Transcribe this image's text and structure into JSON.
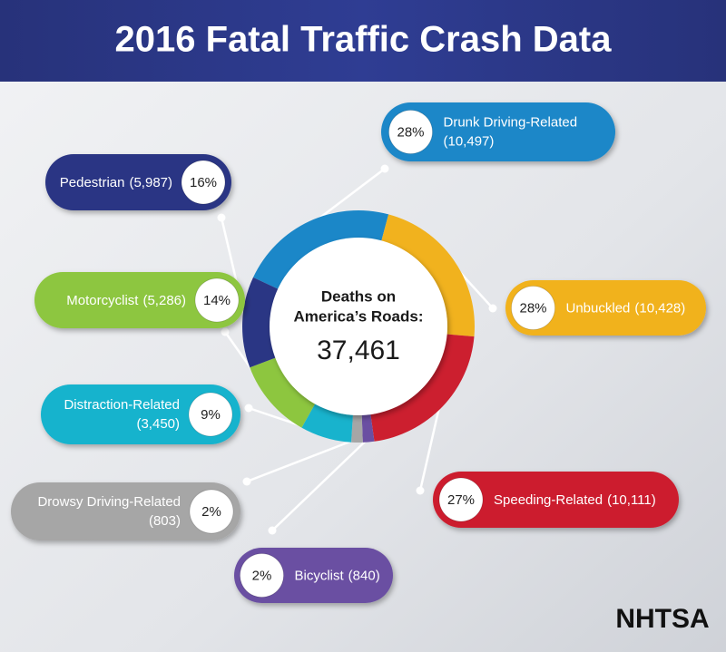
{
  "chart_data": {
    "type": "donut",
    "title": "2016 Fatal Traffic Crash Data",
    "center_label": [
      "Deaths on",
      "America’s Roads:"
    ],
    "total": {
      "value": 37461,
      "label": "37,461"
    },
    "categories": [
      "Drunk Driving-Related",
      "Unbuckled",
      "Speeding-Related",
      "Bicyclist",
      "Drowsy Driving-Related",
      "Distraction-Related",
      "Motorcyclist",
      "Pedestrian"
    ],
    "values": [
      28,
      28,
      27,
      2,
      2,
      9,
      14,
      16
    ],
    "value_labels": [
      "28%",
      "28%",
      "27%",
      "2%",
      "2%",
      "9%",
      "14%",
      "16%"
    ],
    "counts": [
      10497,
      10428,
      10111,
      840,
      803,
      3450,
      5286,
      5987
    ],
    "count_labels": [
      "(10,497)",
      "(10,428)",
      "(10,111)",
      "(840)",
      "(803)",
      "(3,450)",
      "(5,286)",
      "(5,987)"
    ],
    "colors": [
      "#1b87c8",
      "#f1b21e",
      "#cc1f2f",
      "#6a4fa2",
      "#a6a6a6",
      "#18b3cd",
      "#8dc63f",
      "#2a3684"
    ],
    "logo": "NHTSA"
  }
}
